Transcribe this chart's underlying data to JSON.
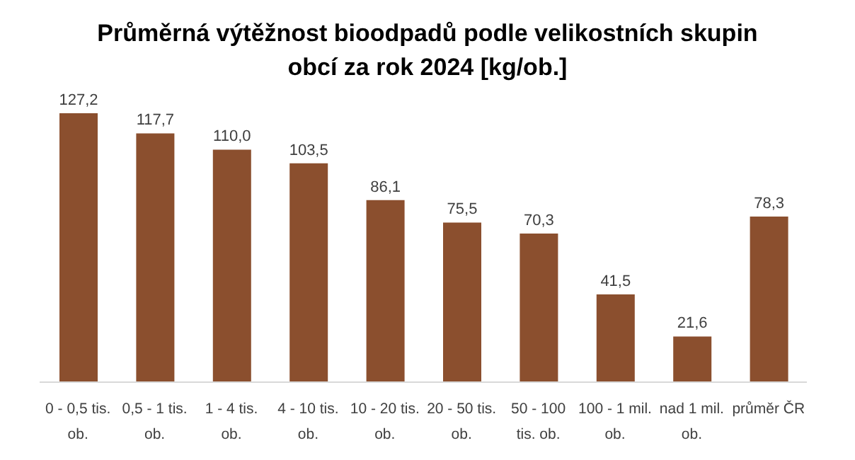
{
  "chart_data": {
    "type": "bar",
    "title": "Průměrná výtěžnost bioodpadů podle velikostních skupin obcí za rok 2024 [kg/ob.]",
    "categories": [
      "0 - 0,5 tis. ob.",
      "0,5 - 1 tis. ob.",
      "1 - 4 tis. ob.",
      "4 - 10 tis. ob.",
      "10 - 20 tis. ob.",
      "20 - 50 tis. ob.",
      "50 - 100 tis. ob.",
      "100 - 1 mil. ob.",
      "nad 1 mil. ob.",
      "průměr ČR"
    ],
    "values": [
      127.2,
      117.7,
      110.0,
      103.5,
      86.1,
      75.5,
      70.3,
      41.5,
      21.6,
      78.3
    ],
    "value_labels": [
      "127,2",
      "117,7",
      "110,0",
      "103,5",
      "86,1",
      "75,5",
      "70,3",
      "41,5",
      "21,6",
      "78,3"
    ],
    "color": "#8b4f2e"
  }
}
